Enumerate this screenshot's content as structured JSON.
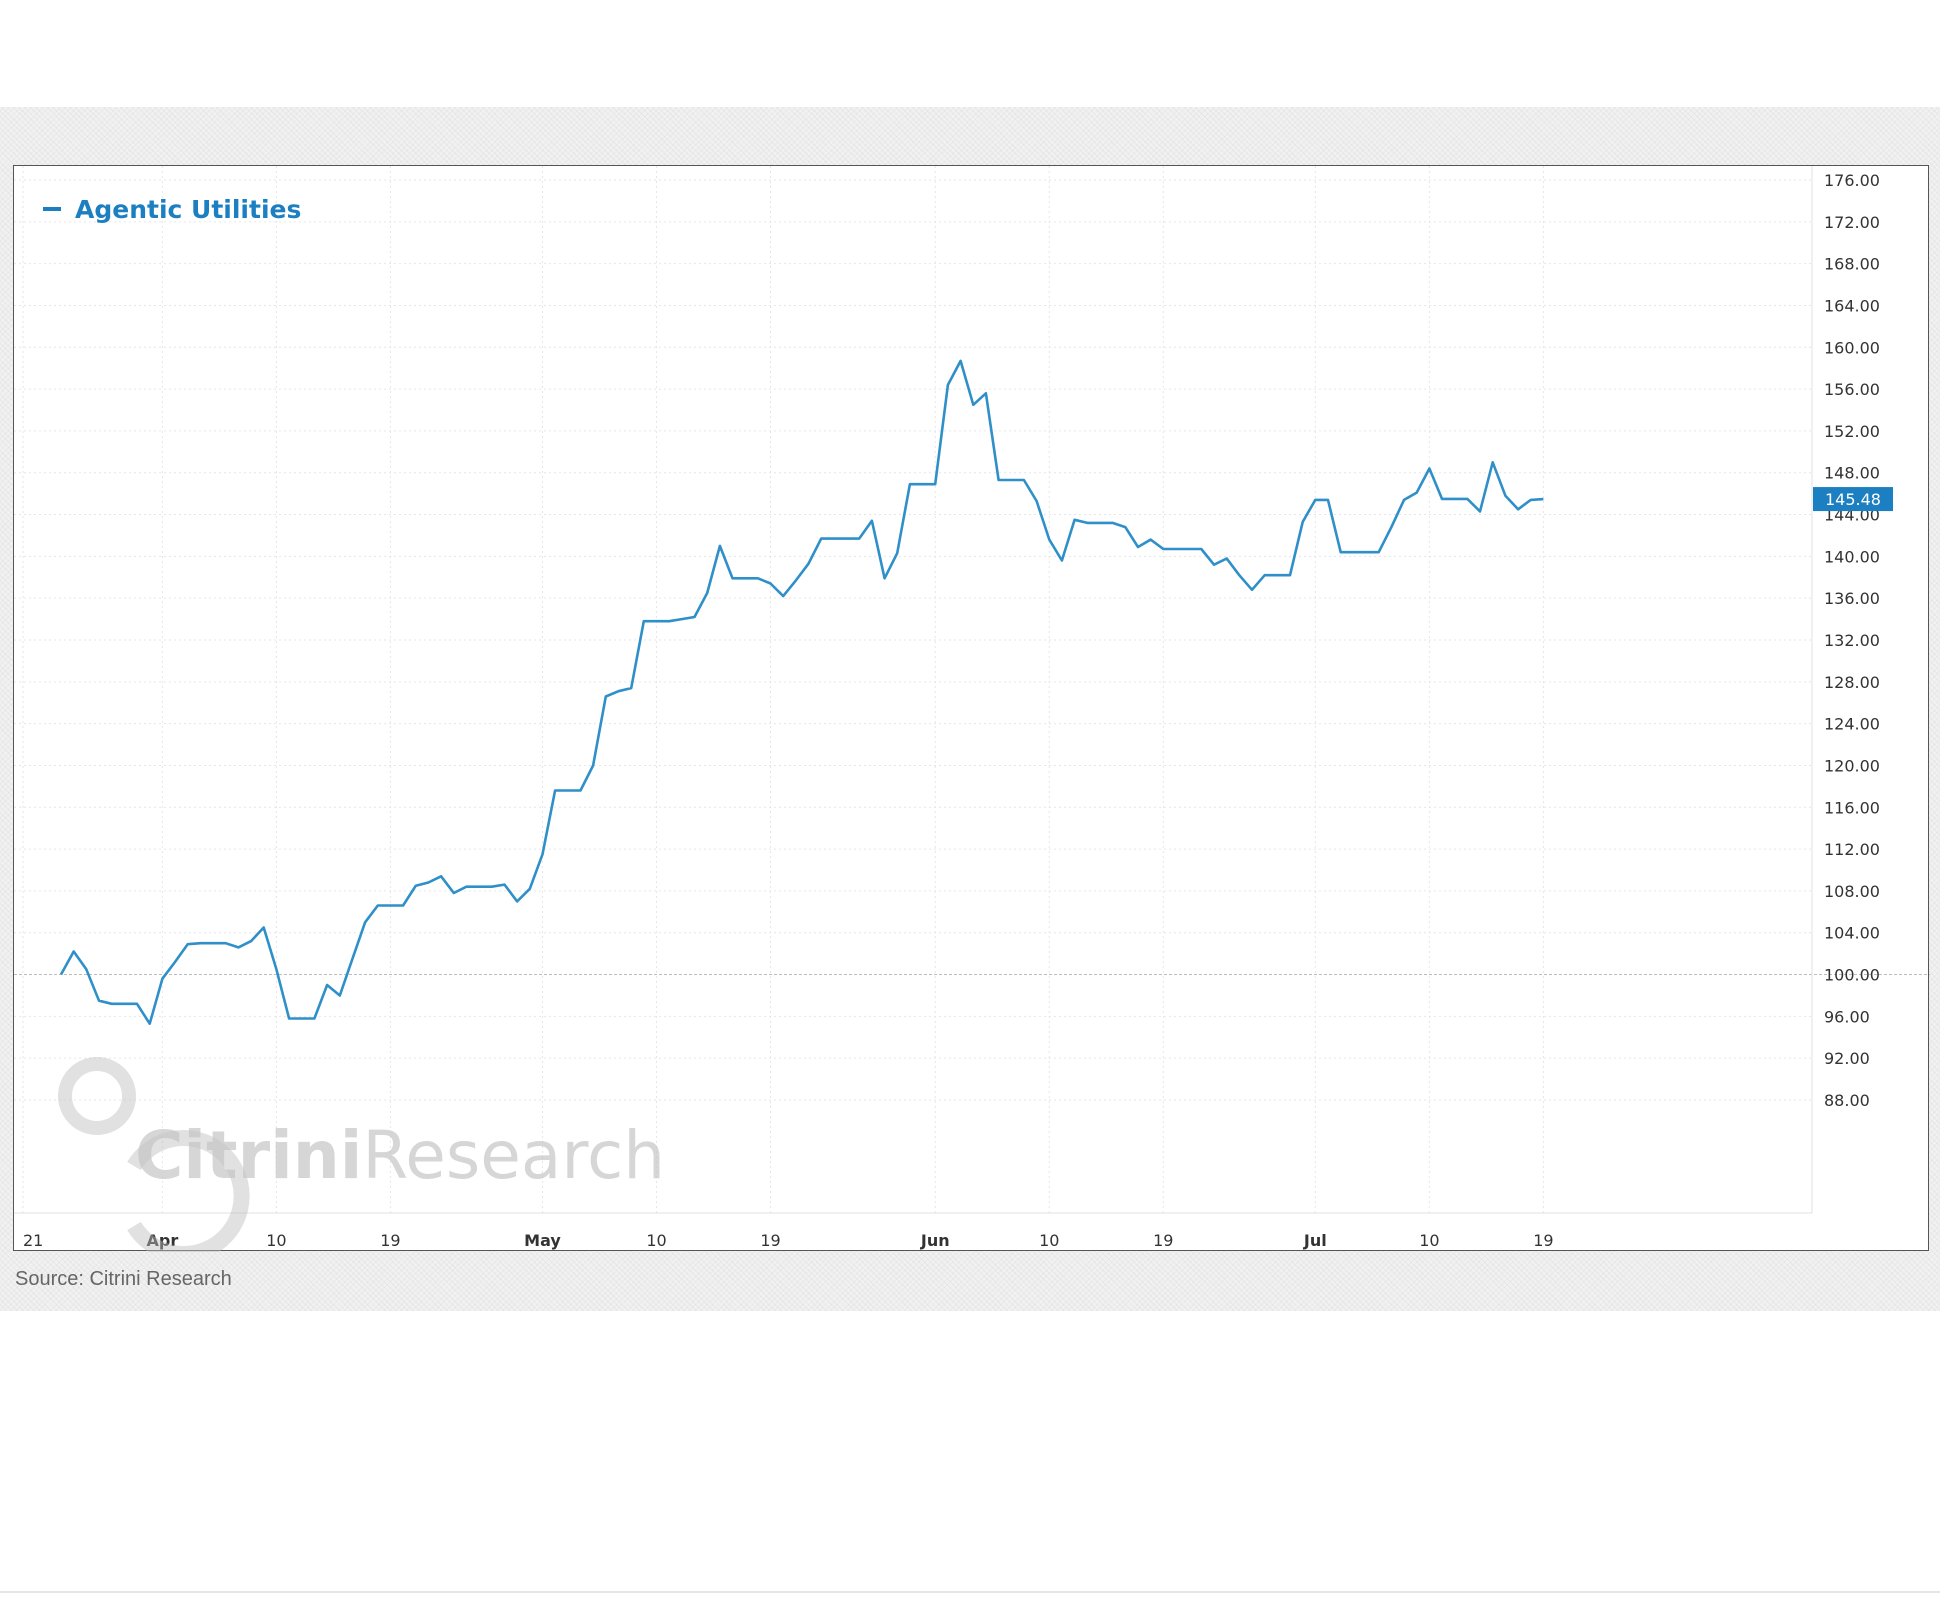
{
  "footer": {
    "source": "Source: Citrini Research"
  },
  "colors": {
    "line": "#2f8fc9",
    "legend": "#1b7fc1",
    "badge": "#1b7fc1",
    "grid": "#e6e6e6",
    "baseline": "#bdbdbd"
  },
  "watermark": {
    "text_bold": "Citrini",
    "text_regular": "Research"
  },
  "chart_data": {
    "type": "line",
    "title": "",
    "xlabel": "",
    "ylabel": "",
    "legend": {
      "entries": [
        "Agentic Utilities"
      ],
      "placement": "top-left"
    },
    "grid": true,
    "baseline": 100,
    "last_value_label": "145.48",
    "ylim": [
      88,
      176
    ],
    "y_ticks": [
      "176.00",
      "172.00",
      "168.00",
      "164.00",
      "160.00",
      "156.00",
      "152.00",
      "148.00",
      "144.00",
      "140.00",
      "136.00",
      "132.00",
      "128.00",
      "124.00",
      "120.00",
      "116.00",
      "112.00",
      "108.00",
      "104.00",
      "100.00",
      "96.00",
      "92.00",
      "88.00"
    ],
    "x_ticks": [
      {
        "label": "21",
        "date": "2025-03-21"
      },
      {
        "label": "Apr",
        "date": "2025-04-01"
      },
      {
        "label": "10",
        "date": "2025-04-10"
      },
      {
        "label": "19",
        "date": "2025-04-19"
      },
      {
        "label": "May",
        "date": "2025-05-01"
      },
      {
        "label": "10",
        "date": "2025-05-10"
      },
      {
        "label": "19",
        "date": "2025-05-19"
      },
      {
        "label": "Jun",
        "date": "2025-06-01"
      },
      {
        "label": "10",
        "date": "2025-06-10"
      },
      {
        "label": "19",
        "date": "2025-06-19"
      },
      {
        "label": "Jul",
        "date": "2025-07-01"
      },
      {
        "label": "10",
        "date": "2025-07-10"
      },
      {
        "label": "19",
        "date": "2025-07-19"
      }
    ],
    "series": [
      {
        "name": "Agentic Utilities",
        "points": [
          [
            "2025-03-24",
            100.0
          ],
          [
            "2025-03-25",
            102.2
          ],
          [
            "2025-03-26",
            100.5
          ],
          [
            "2025-03-27",
            97.5
          ],
          [
            "2025-03-28",
            97.2
          ],
          [
            "2025-03-29",
            97.2
          ],
          [
            "2025-03-30",
            97.2
          ],
          [
            "2025-03-31",
            95.3
          ],
          [
            "2025-04-01",
            99.6
          ],
          [
            "2025-04-02",
            101.2
          ],
          [
            "2025-04-03",
            102.9
          ],
          [
            "2025-04-04",
            103.0
          ],
          [
            "2025-04-05",
            103.0
          ],
          [
            "2025-04-06",
            103.0
          ],
          [
            "2025-04-07",
            102.6
          ],
          [
            "2025-04-08",
            103.2
          ],
          [
            "2025-04-09",
            104.5
          ],
          [
            "2025-04-10",
            100.5
          ],
          [
            "2025-04-11",
            95.8
          ],
          [
            "2025-04-12",
            95.8
          ],
          [
            "2025-04-13",
            95.8
          ],
          [
            "2025-04-14",
            99.0
          ],
          [
            "2025-04-15",
            98.0
          ],
          [
            "2025-04-16",
            101.5
          ],
          [
            "2025-04-17",
            105.0
          ],
          [
            "2025-04-18",
            106.6
          ],
          [
            "2025-04-19",
            106.6
          ],
          [
            "2025-04-20",
            106.6
          ],
          [
            "2025-04-21",
            108.5
          ],
          [
            "2025-04-22",
            108.8
          ],
          [
            "2025-04-23",
            109.4
          ],
          [
            "2025-04-24",
            107.8
          ],
          [
            "2025-04-25",
            108.4
          ],
          [
            "2025-04-26",
            108.4
          ],
          [
            "2025-04-27",
            108.4
          ],
          [
            "2025-04-28",
            108.6
          ],
          [
            "2025-04-29",
            107.0
          ],
          [
            "2025-04-30",
            108.2
          ],
          [
            "2025-05-01",
            111.5
          ],
          [
            "2025-05-02",
            117.6
          ],
          [
            "2025-05-03",
            117.6
          ],
          [
            "2025-05-04",
            117.6
          ],
          [
            "2025-05-05",
            120.0
          ],
          [
            "2025-05-06",
            126.6
          ],
          [
            "2025-05-07",
            127.1
          ],
          [
            "2025-05-08",
            127.4
          ],
          [
            "2025-05-09",
            133.8
          ],
          [
            "2025-05-10",
            133.8
          ],
          [
            "2025-05-11",
            133.8
          ],
          [
            "2025-05-12",
            134.0
          ],
          [
            "2025-05-13",
            134.2
          ],
          [
            "2025-05-14",
            136.5
          ],
          [
            "2025-05-15",
            141.0
          ],
          [
            "2025-05-16",
            137.9
          ],
          [
            "2025-05-17",
            137.9
          ],
          [
            "2025-05-18",
            137.9
          ],
          [
            "2025-05-19",
            137.4
          ],
          [
            "2025-05-20",
            136.2
          ],
          [
            "2025-05-21",
            137.7
          ],
          [
            "2025-05-22",
            139.3
          ],
          [
            "2025-05-23",
            141.7
          ],
          [
            "2025-05-24",
            141.7
          ],
          [
            "2025-05-25",
            141.7
          ],
          [
            "2025-05-26",
            141.7
          ],
          [
            "2025-05-27",
            143.4
          ],
          [
            "2025-05-28",
            137.9
          ],
          [
            "2025-05-29",
            140.3
          ],
          [
            "2025-05-30",
            146.9
          ],
          [
            "2025-05-31",
            146.9
          ],
          [
            "2025-06-01",
            146.9
          ],
          [
            "2025-06-02",
            156.4
          ],
          [
            "2025-06-03",
            158.7
          ],
          [
            "2025-06-04",
            154.5
          ],
          [
            "2025-06-05",
            155.6
          ],
          [
            "2025-06-06",
            147.3
          ],
          [
            "2025-06-07",
            147.3
          ],
          [
            "2025-06-08",
            147.3
          ],
          [
            "2025-06-09",
            145.3
          ],
          [
            "2025-06-10",
            141.6
          ],
          [
            "2025-06-11",
            139.6
          ],
          [
            "2025-06-12",
            143.5
          ],
          [
            "2025-06-13",
            143.2
          ],
          [
            "2025-06-14",
            143.2
          ],
          [
            "2025-06-15",
            143.2
          ],
          [
            "2025-06-16",
            142.8
          ],
          [
            "2025-06-17",
            140.9
          ],
          [
            "2025-06-18",
            141.6
          ],
          [
            "2025-06-19",
            140.7
          ],
          [
            "2025-06-20",
            140.7
          ],
          [
            "2025-06-21",
            140.7
          ],
          [
            "2025-06-22",
            140.7
          ],
          [
            "2025-06-23",
            139.2
          ],
          [
            "2025-06-24",
            139.8
          ],
          [
            "2025-06-25",
            138.2
          ],
          [
            "2025-06-26",
            136.8
          ],
          [
            "2025-06-27",
            138.2
          ],
          [
            "2025-06-28",
            138.2
          ],
          [
            "2025-06-29",
            138.2
          ],
          [
            "2025-06-30",
            143.3
          ],
          [
            "2025-07-01",
            145.4
          ],
          [
            "2025-07-02",
            145.4
          ],
          [
            "2025-07-03",
            140.4
          ],
          [
            "2025-07-04",
            140.4
          ],
          [
            "2025-07-05",
            140.4
          ],
          [
            "2025-07-06",
            140.4
          ],
          [
            "2025-07-07",
            142.8
          ],
          [
            "2025-07-08",
            145.4
          ],
          [
            "2025-07-09",
            146.1
          ],
          [
            "2025-07-10",
            148.4
          ],
          [
            "2025-07-11",
            145.5
          ],
          [
            "2025-07-12",
            145.5
          ],
          [
            "2025-07-13",
            145.5
          ],
          [
            "2025-07-14",
            144.3
          ],
          [
            "2025-07-15",
            149.0
          ],
          [
            "2025-07-16",
            145.8
          ],
          [
            "2025-07-17",
            144.5
          ],
          [
            "2025-07-18",
            145.4
          ],
          [
            "2025-07-19",
            145.48
          ]
        ]
      }
    ]
  }
}
